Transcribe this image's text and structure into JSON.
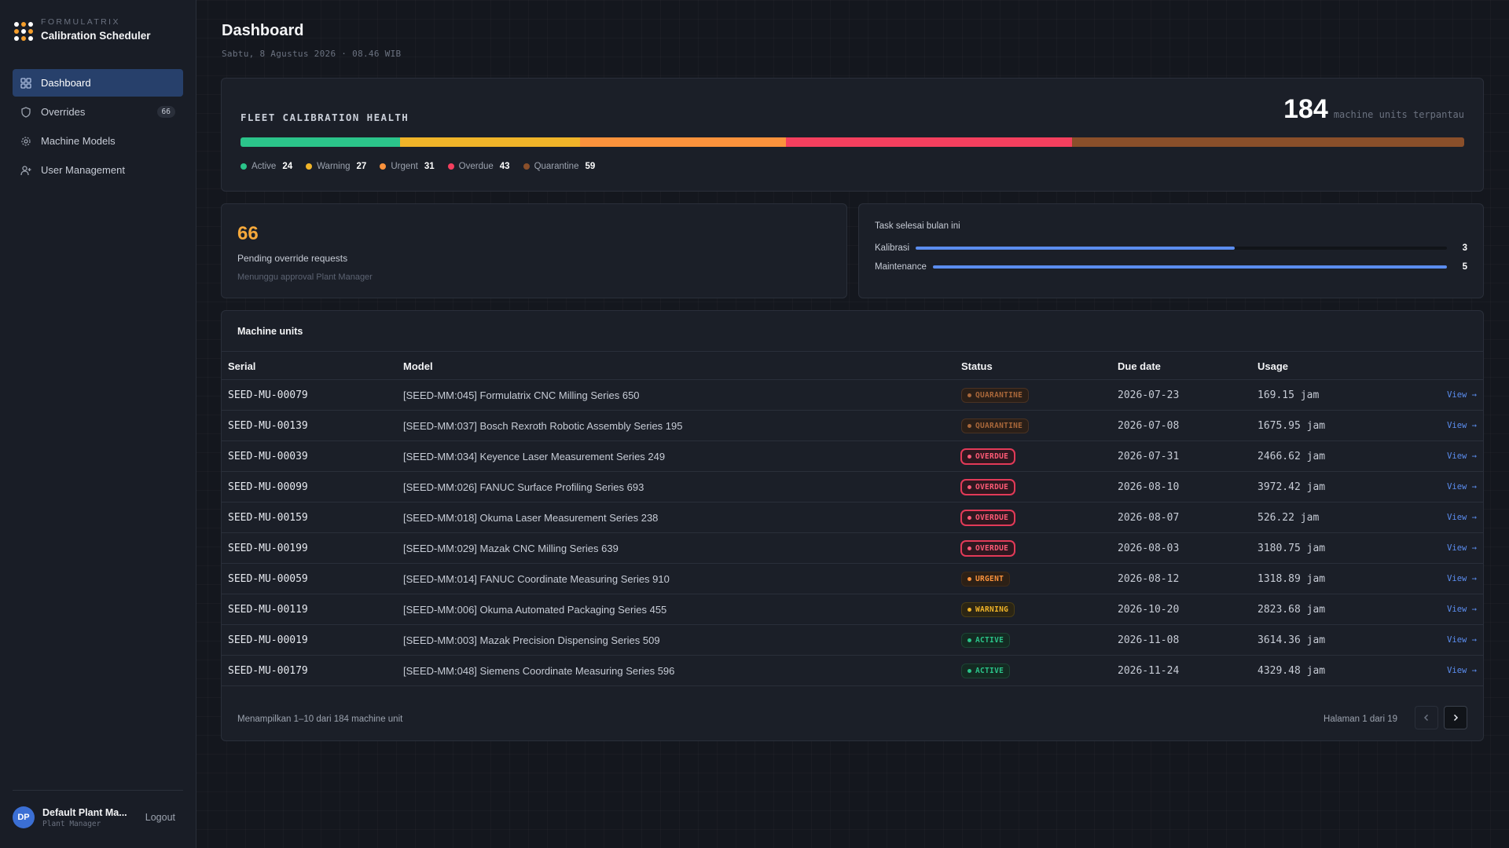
{
  "app": {
    "brand_kicker": "FORMULATRIX",
    "brand_name": "Calibration Scheduler"
  },
  "sidebar": {
    "items": [
      {
        "label": "Dashboard",
        "icon": "grid-icon",
        "active": true
      },
      {
        "label": "Overrides",
        "icon": "shield-icon",
        "badge": "66"
      },
      {
        "label": "Machine Models",
        "icon": "gear-icon"
      },
      {
        "label": "User Management",
        "icon": "user-plus-icon"
      }
    ],
    "user": {
      "initials": "DP",
      "name": "Default Plant Ma...",
      "role": "Plant Manager",
      "logout_label": "Logout"
    }
  },
  "header": {
    "title": "Dashboard",
    "date": "Sabtu, 8 Agustus 2026 · 08.46 WIB"
  },
  "health": {
    "title": "FLEET CALIBRATION HEALTH",
    "total": "184",
    "total_unit": "machine units terpantau",
    "segments": [
      {
        "label": "Active",
        "count": 24,
        "color": "#2bc48a"
      },
      {
        "label": "Warning",
        "count": 27,
        "color": "#f0b429"
      },
      {
        "label": "Urgent",
        "count": 31,
        "color": "#fb923c"
      },
      {
        "label": "Overdue",
        "count": 43,
        "color": "#f43f5e"
      },
      {
        "label": "Quarantine",
        "count": 59,
        "color": "#8a4f2a"
      }
    ]
  },
  "pending": {
    "count": "66",
    "title": "Pending override requests",
    "subtitle": "Menunggu approval Plant Manager"
  },
  "tasks": {
    "title": "Task selesai bulan ini",
    "rows": [
      {
        "label": "Kalibrasi",
        "value": 3,
        "fraction": 0.6
      },
      {
        "label": "Maintenance",
        "value": 5,
        "fraction": 1.0
      }
    ]
  },
  "units": {
    "title": "Machine units",
    "columns": {
      "serial": "Serial",
      "model": "Model",
      "status": "Status",
      "due": "Due date",
      "usage": "Usage"
    },
    "view_label": "View →",
    "rows": [
      {
        "serial": "SEED-MU-00079",
        "model": "[SEED-MM:045] Formulatrix CNC Milling Series 650",
        "status": "QUARANTINE",
        "due": "2026-07-23",
        "usage": "169.15 jam"
      },
      {
        "serial": "SEED-MU-00139",
        "model": "[SEED-MM:037] Bosch Rexroth Robotic Assembly Series 195",
        "status": "QUARANTINE",
        "due": "2026-07-08",
        "usage": "1675.95 jam"
      },
      {
        "serial": "SEED-MU-00039",
        "model": "[SEED-MM:034] Keyence Laser Measurement Series 249",
        "status": "OVERDUE",
        "due": "2026-07-31",
        "usage": "2466.62 jam"
      },
      {
        "serial": "SEED-MU-00099",
        "model": "[SEED-MM:026] FANUC Surface Profiling Series 693",
        "status": "OVERDUE",
        "due": "2026-08-10",
        "usage": "3972.42 jam"
      },
      {
        "serial": "SEED-MU-00159",
        "model": "[SEED-MM:018] Okuma Laser Measurement Series 238",
        "status": "OVERDUE",
        "due": "2026-08-07",
        "usage": "526.22 jam"
      },
      {
        "serial": "SEED-MU-00199",
        "model": "[SEED-MM:029] Mazak CNC Milling Series 639",
        "status": "OVERDUE",
        "due": "2026-08-03",
        "usage": "3180.75 jam"
      },
      {
        "serial": "SEED-MU-00059",
        "model": "[SEED-MM:014] FANUC Coordinate Measuring Series 910",
        "status": "URGENT",
        "due": "2026-08-12",
        "usage": "1318.89 jam"
      },
      {
        "serial": "SEED-MU-00119",
        "model": "[SEED-MM:006] Okuma Automated Packaging Series 455",
        "status": "WARNING",
        "due": "2026-10-20",
        "usage": "2823.68 jam"
      },
      {
        "serial": "SEED-MU-00019",
        "model": "[SEED-MM:003] Mazak Precision Dispensing Series 509",
        "status": "ACTIVE",
        "due": "2026-11-08",
        "usage": "3614.36 jam"
      },
      {
        "serial": "SEED-MU-00179",
        "model": "[SEED-MM:048] Siemens Coordinate Measuring Series 596",
        "status": "ACTIVE",
        "due": "2026-11-24",
        "usage": "4329.48 jam"
      }
    ],
    "footer_text": "Menampilkan 1–10 dari 184 machine unit",
    "page_info": "Halaman 1 dari 19"
  },
  "status_colors": {
    "QUARANTINE": {
      "fg": "#a8673a",
      "bg": "#2a1f18",
      "border": "#4a3222"
    },
    "OVERDUE": {
      "fg": "#ff5a76",
      "bg": "#2e1820",
      "border": "#e23a58"
    },
    "URGENT": {
      "fg": "#fb923c",
      "bg": "#2c2016",
      "border": "#3e2a18"
    },
    "WARNING": {
      "fg": "#f0b429",
      "bg": "#2b2514",
      "border": "#4a3d14"
    },
    "ACTIVE": {
      "fg": "#2bc48a",
      "bg": "#142a22",
      "border": "#1c4434"
    }
  }
}
